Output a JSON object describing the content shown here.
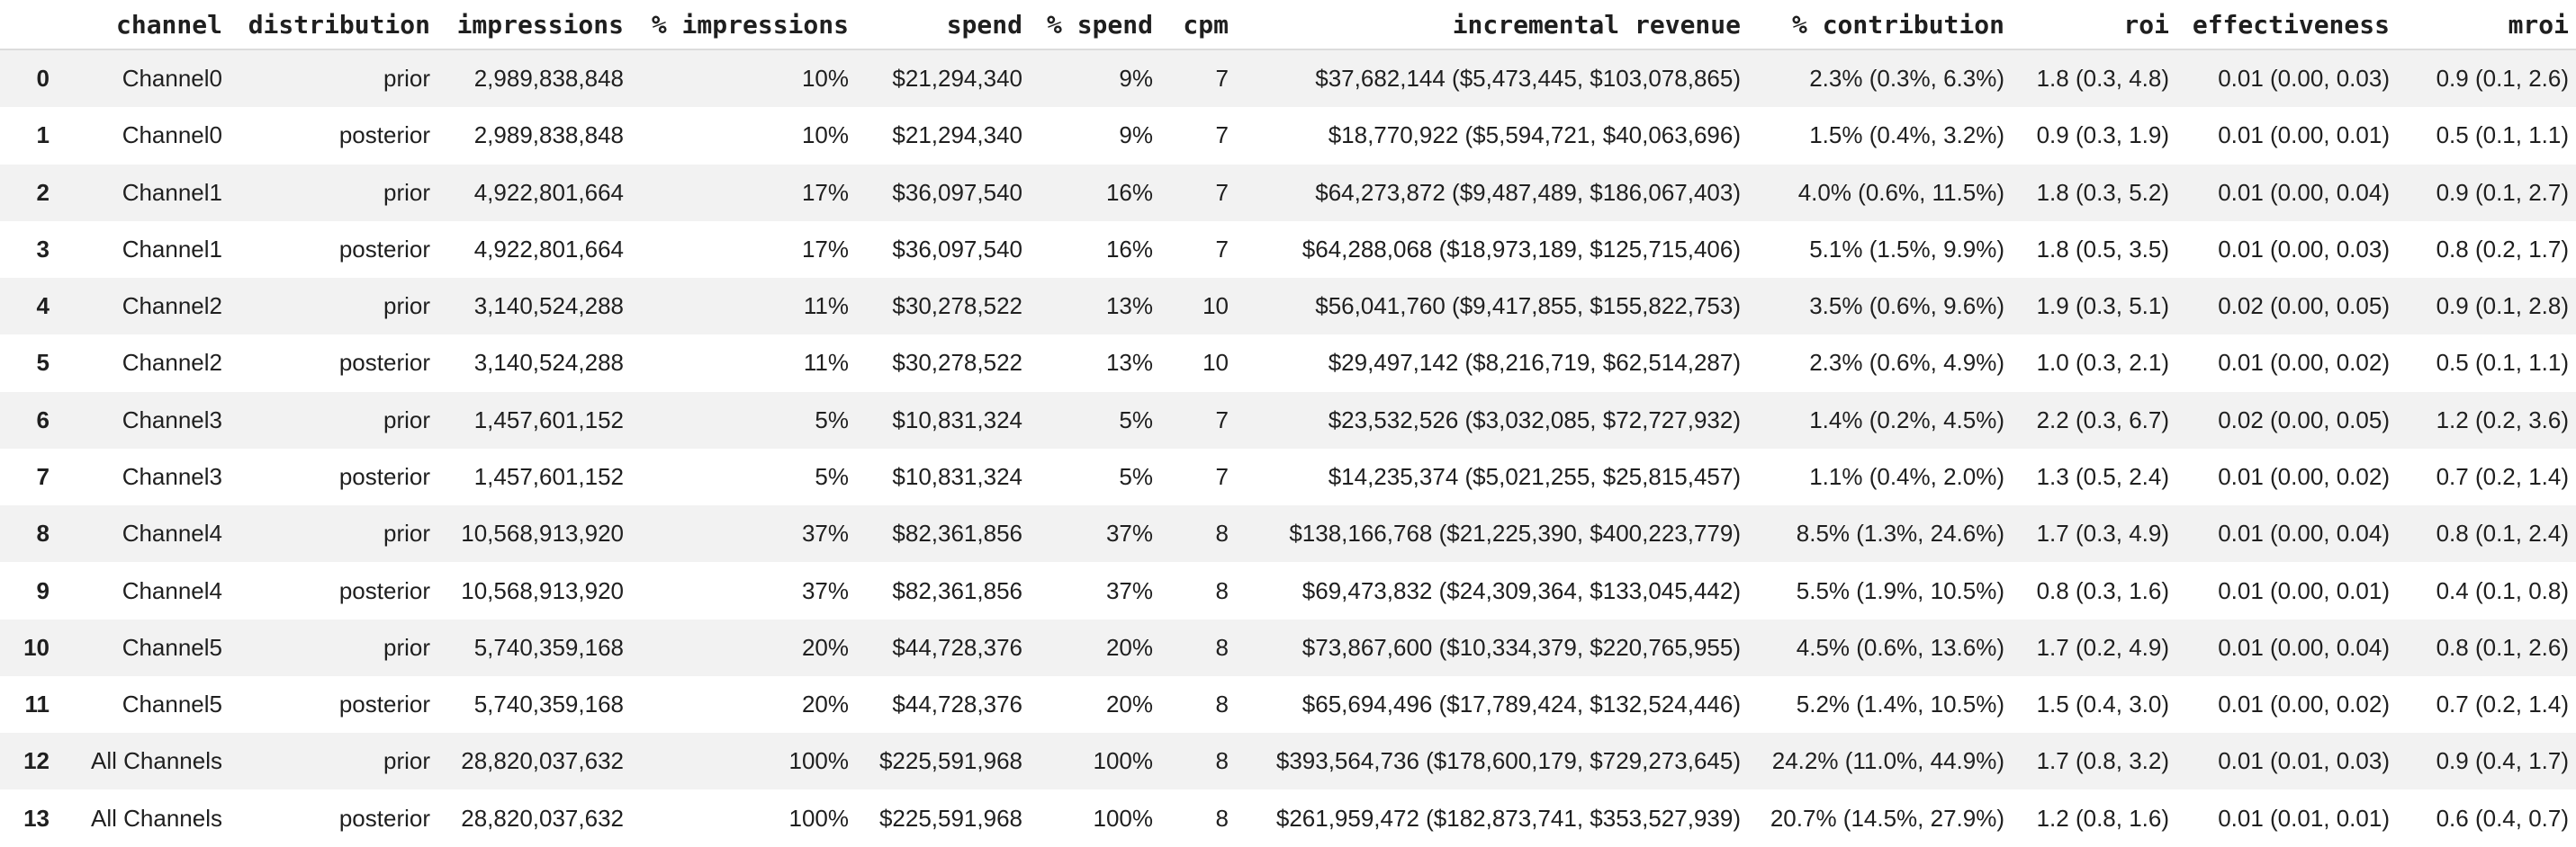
{
  "colors": {
    "background": "#ffffff",
    "stripe": "#f2f2f2",
    "header_border": "#dcdcdc",
    "text": "#1f1f1f"
  },
  "table": {
    "index_header": "",
    "columns": [
      {
        "key": "channel",
        "label": "channel"
      },
      {
        "key": "distribution",
        "label": "distribution"
      },
      {
        "key": "impressions",
        "label": "impressions"
      },
      {
        "key": "pct-impressions",
        "label": "% impressions"
      },
      {
        "key": "spend",
        "label": "spend"
      },
      {
        "key": "pct-spend",
        "label": "% spend"
      },
      {
        "key": "cpm",
        "label": "cpm"
      },
      {
        "key": "incremental-revenue",
        "label": "incremental revenue"
      },
      {
        "key": "pct-contribution",
        "label": "% contribution"
      },
      {
        "key": "roi",
        "label": "roi"
      },
      {
        "key": "effectiveness",
        "label": "effectiveness"
      },
      {
        "key": "mroi",
        "label": "mroi"
      }
    ],
    "rows": [
      {
        "index": "0",
        "values": [
          "Channel0",
          "prior",
          "2,989,838,848",
          "10%",
          "$21,294,340",
          "9%",
          "7",
          "$37,682,144 ($5,473,445, $103,078,865)",
          "2.3% (0.3%, 6.3%)",
          "1.8 (0.3, 4.8)",
          "0.01 (0.00, 0.03)",
          "0.9 (0.1, 2.6)"
        ]
      },
      {
        "index": "1",
        "values": [
          "Channel0",
          "posterior",
          "2,989,838,848",
          "10%",
          "$21,294,340",
          "9%",
          "7",
          "$18,770,922 ($5,594,721, $40,063,696)",
          "1.5% (0.4%, 3.2%)",
          "0.9 (0.3, 1.9)",
          "0.01 (0.00, 0.01)",
          "0.5 (0.1, 1.1)"
        ]
      },
      {
        "index": "2",
        "values": [
          "Channel1",
          "prior",
          "4,922,801,664",
          "17%",
          "$36,097,540",
          "16%",
          "7",
          "$64,273,872 ($9,487,489, $186,067,403)",
          "4.0% (0.6%, 11.5%)",
          "1.8 (0.3, 5.2)",
          "0.01 (0.00, 0.04)",
          "0.9 (0.1, 2.7)"
        ]
      },
      {
        "index": "3",
        "values": [
          "Channel1",
          "posterior",
          "4,922,801,664",
          "17%",
          "$36,097,540",
          "16%",
          "7",
          "$64,288,068 ($18,973,189, $125,715,406)",
          "5.1% (1.5%, 9.9%)",
          "1.8 (0.5, 3.5)",
          "0.01 (0.00, 0.03)",
          "0.8 (0.2, 1.7)"
        ]
      },
      {
        "index": "4",
        "values": [
          "Channel2",
          "prior",
          "3,140,524,288",
          "11%",
          "$30,278,522",
          "13%",
          "10",
          "$56,041,760 ($9,417,855, $155,822,753)",
          "3.5% (0.6%, 9.6%)",
          "1.9 (0.3, 5.1)",
          "0.02 (0.00, 0.05)",
          "0.9 (0.1, 2.8)"
        ]
      },
      {
        "index": "5",
        "values": [
          "Channel2",
          "posterior",
          "3,140,524,288",
          "11%",
          "$30,278,522",
          "13%",
          "10",
          "$29,497,142 ($8,216,719, $62,514,287)",
          "2.3% (0.6%, 4.9%)",
          "1.0 (0.3, 2.1)",
          "0.01 (0.00, 0.02)",
          "0.5 (0.1, 1.1)"
        ]
      },
      {
        "index": "6",
        "values": [
          "Channel3",
          "prior",
          "1,457,601,152",
          "5%",
          "$10,831,324",
          "5%",
          "7",
          "$23,532,526 ($3,032,085, $72,727,932)",
          "1.4% (0.2%, 4.5%)",
          "2.2 (0.3, 6.7)",
          "0.02 (0.00, 0.05)",
          "1.2 (0.2, 3.6)"
        ]
      },
      {
        "index": "7",
        "values": [
          "Channel3",
          "posterior",
          "1,457,601,152",
          "5%",
          "$10,831,324",
          "5%",
          "7",
          "$14,235,374 ($5,021,255, $25,815,457)",
          "1.1% (0.4%, 2.0%)",
          "1.3 (0.5, 2.4)",
          "0.01 (0.00, 0.02)",
          "0.7 (0.2, 1.4)"
        ]
      },
      {
        "index": "8",
        "values": [
          "Channel4",
          "prior",
          "10,568,913,920",
          "37%",
          "$82,361,856",
          "37%",
          "8",
          "$138,166,768 ($21,225,390, $400,223,779)",
          "8.5% (1.3%, 24.6%)",
          "1.7 (0.3, 4.9)",
          "0.01 (0.00, 0.04)",
          "0.8 (0.1, 2.4)"
        ]
      },
      {
        "index": "9",
        "values": [
          "Channel4",
          "posterior",
          "10,568,913,920",
          "37%",
          "$82,361,856",
          "37%",
          "8",
          "$69,473,832 ($24,309,364, $133,045,442)",
          "5.5% (1.9%, 10.5%)",
          "0.8 (0.3, 1.6)",
          "0.01 (0.00, 0.01)",
          "0.4 (0.1, 0.8)"
        ]
      },
      {
        "index": "10",
        "values": [
          "Channel5",
          "prior",
          "5,740,359,168",
          "20%",
          "$44,728,376",
          "20%",
          "8",
          "$73,867,600 ($10,334,379, $220,765,955)",
          "4.5% (0.6%, 13.6%)",
          "1.7 (0.2, 4.9)",
          "0.01 (0.00, 0.04)",
          "0.8 (0.1, 2.6)"
        ]
      },
      {
        "index": "11",
        "values": [
          "Channel5",
          "posterior",
          "5,740,359,168",
          "20%",
          "$44,728,376",
          "20%",
          "8",
          "$65,694,496 ($17,789,424, $132,524,446)",
          "5.2% (1.4%, 10.5%)",
          "1.5 (0.4, 3.0)",
          "0.01 (0.00, 0.02)",
          "0.7 (0.2, 1.4)"
        ]
      },
      {
        "index": "12",
        "values": [
          "All Channels",
          "prior",
          "28,820,037,632",
          "100%",
          "$225,591,968",
          "100%",
          "8",
          "$393,564,736 ($178,600,179, $729,273,645)",
          "24.2% (11.0%, 44.9%)",
          "1.7 (0.8, 3.2)",
          "0.01 (0.01, 0.03)",
          "0.9 (0.4, 1.7)"
        ]
      },
      {
        "index": "13",
        "values": [
          "All Channels",
          "posterior",
          "28,820,037,632",
          "100%",
          "$225,591,968",
          "100%",
          "8",
          "$261,959,472 ($182,873,741, $353,527,939)",
          "20.7% (14.5%, 27.9%)",
          "1.2 (0.8, 1.6)",
          "0.01 (0.01, 0.01)",
          "0.6 (0.4, 0.7)"
        ]
      }
    ]
  }
}
